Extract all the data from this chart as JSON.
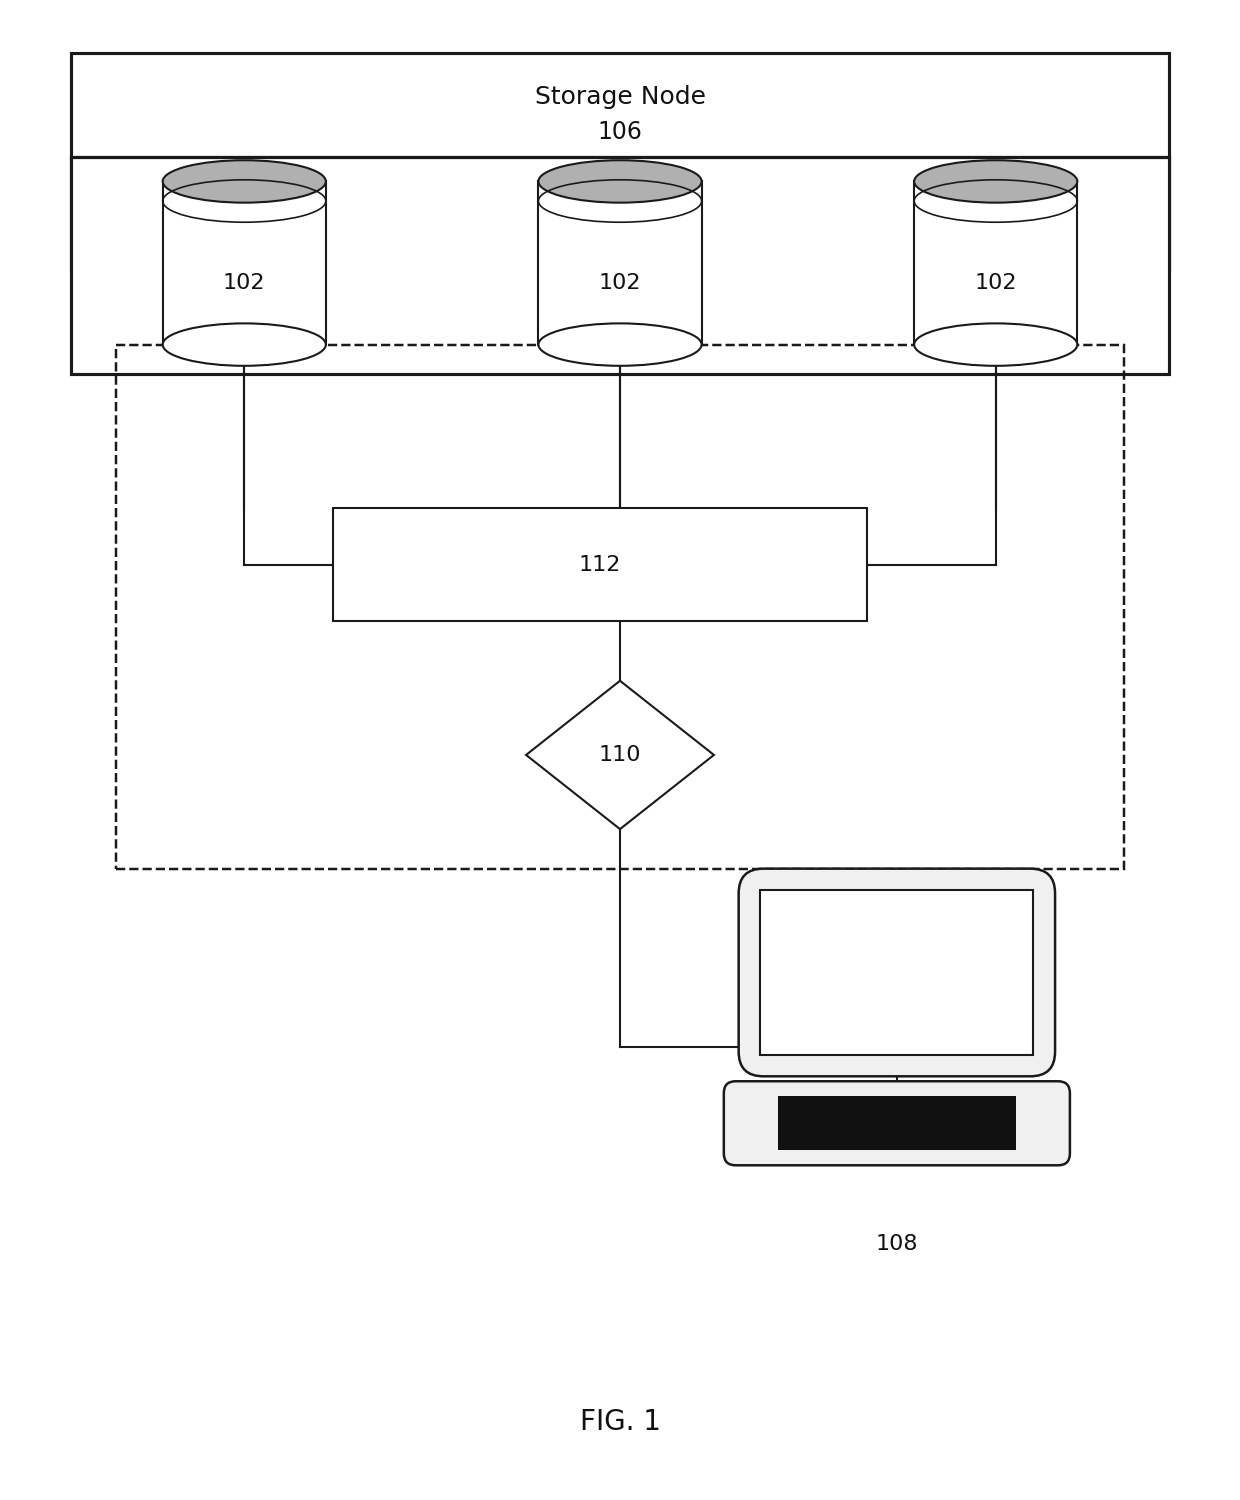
{
  "bg_color": "#ffffff",
  "storage_node_label": "Storage Node",
  "storage_node_number": "106",
  "disk_label": "102",
  "switch_label": "112",
  "diamond_label": "110",
  "computer_label": "108",
  "fig_label": "FIG. 1",
  "line_color": "#1a1a1a",
  "fill_color": "#ffffff",
  "disk_top_color": "#b0b0b0",
  "font_size_label": 15,
  "font_size_fig": 18,
  "lw": 1.5
}
